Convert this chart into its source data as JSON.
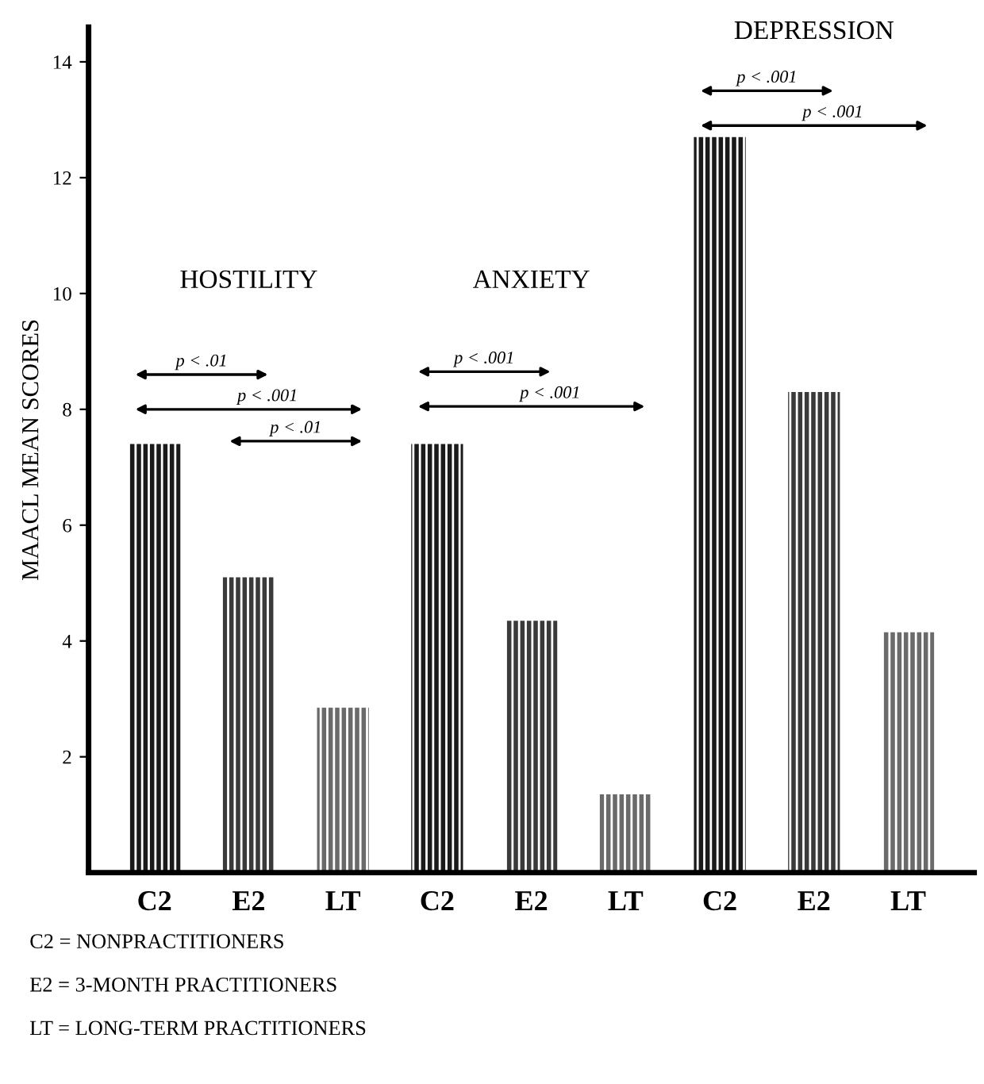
{
  "chart_data": {
    "type": "bar",
    "ylabel": "MAACL MEAN SCORES",
    "categories": [
      "C2",
      "E2",
      "LT",
      "C2",
      "E2",
      "LT",
      "C2",
      "E2",
      "LT"
    ],
    "values": [
      7.4,
      5.1,
      2.85,
      7.4,
      4.35,
      1.35,
      12.7,
      8.3,
      4.15
    ],
    "colors": [
      "#1a1a1a",
      "#3a3a3a",
      "#6a6a6a",
      "#1a1a1a",
      "#3a3a3a",
      "#6a6a6a",
      "#1a1a1a",
      "#3a3a3a",
      "#6a6a6a"
    ],
    "ylim": [
      0,
      14.6
    ],
    "yticks": [
      2,
      4,
      6,
      8,
      10,
      12,
      14
    ],
    "grid": false,
    "legend": false,
    "annotations": [
      "HOSTILITY",
      "p < .01",
      "p < .001",
      "p < .01",
      "ANXIETY",
      "p < .001",
      "p < .001",
      "DEPRESSION",
      "p < .001",
      "p < .001",
      "C2 = NONPRACTITIONERS",
      "E2 = 3-MONTH PRACTITIONERS",
      "LT = LONG-TERM PRACTITIONERS"
    ]
  }
}
